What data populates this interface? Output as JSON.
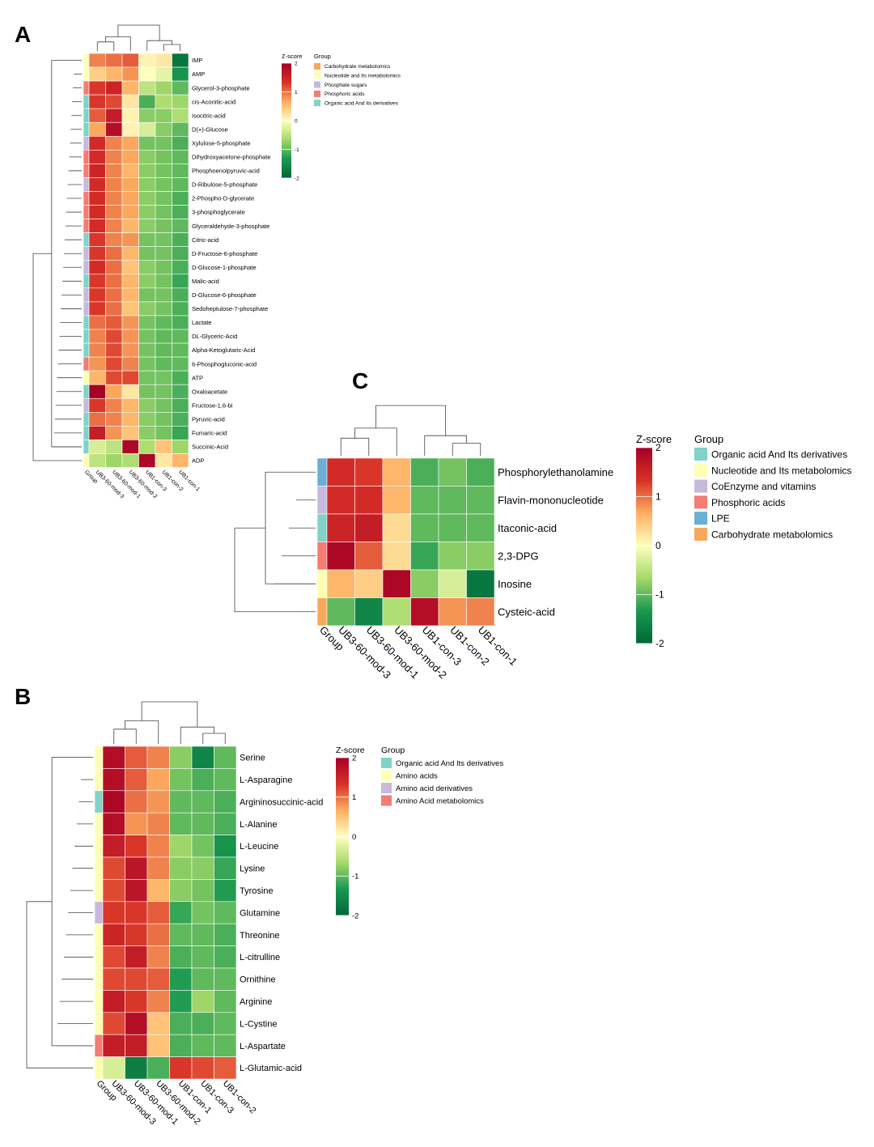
{
  "figure": {
    "panel_letters": [
      "A",
      "B",
      "C"
    ]
  },
  "palette": {
    "zscore_stops": [
      "#006837",
      "#1a9850",
      "#a6d96a",
      "#ffffbf",
      "#fdae61",
      "#d73027",
      "#a50026"
    ],
    "group_colors": {
      "Carbohydrate metabolomics": "#f9a85a",
      "Nucleotide and Its metabolomics": "#ffffb3",
      "Phosphate sugars": "#c6b9dc",
      "Phosphoric acids": "#f47c72",
      "Organic acid And Its derivatives": "#7fd3c8",
      "Amino acids": "#ffffb3",
      "Amino acid derivatives": "#c6b9dc",
      "Amino Acid metabolomics": "#f47c72",
      "CoEnzyme and vitamins": "#c6b9dc",
      "LPE": "#6baed6"
    }
  },
  "chart_data": [
    {
      "panel": "A",
      "type": "heatmap",
      "columns": [
        "Group",
        "UB3-60-mod-3",
        "UB3-60-mod-1",
        "UB3-60-mod-2",
        "UB1-con-3",
        "UB1-con-2",
        "UB1-con-1"
      ],
      "rows": [
        "IMP",
        "AMP",
        "Glycerol-3-phosphate",
        "cis-Aconitic-acid",
        "Isocitric-acid",
        "D(+)-Glucose",
        "Xylulose-5-phosphate",
        "Dihydroxyacetone-phosphate",
        "Phosphoenolpyruvic-acid",
        "D-Ribulose-5-phosphate",
        "2-Phospho-D-glycerate",
        "3-phosphoglycerate",
        "Glyceraldehyde-3-phosphate",
        "Citric-acid",
        "D-Fructose-6-phosphate",
        "D-Glucose-1-phosphate",
        "Malic-acid",
        "D-Glucose-6-phosphate",
        "Sedoheptulose-7-phosphate",
        "Lactate",
        "DL-Glyceric-Acid",
        "Alpha-Ketoglutaric-Acid",
        "6-Phosphogluconic-acid",
        "ATP",
        "Oxaloacetate",
        "Fructose-1,6-bi",
        "Pyruvic-acid",
        "Fumaric-acid",
        "Succinic-Acid",
        "ADP"
      ],
      "groups": [
        "Nucleotide and Its metabolomics",
        "Nucleotide and Its metabolomics",
        "Phosphoric acids",
        "Organic acid And Its derivatives",
        "Organic acid And Its derivatives",
        "Organic acid And Its derivatives",
        "Phosphate sugars",
        "Phosphoric acids",
        "Phosphoric acids",
        "Phosphate sugars",
        "Phosphoric acids",
        "Phosphoric acids",
        "Phosphoric acids",
        "Organic acid And Its derivatives",
        "Phosphate sugars",
        "Phosphate sugars",
        "Organic acid And Its derivatives",
        "Phosphate sugars",
        "Phosphate sugars",
        "Organic acid And Its derivatives",
        "Organic acid And Its derivatives",
        "Organic acid And Its derivatives",
        "Phosphoric acids",
        "Nucleotide and Its metabolomics",
        "Organic acid And Its derivatives",
        "Phosphate sugars",
        "Organic acid And Its derivatives",
        "Organic acid And Its derivatives",
        "Organic acid And Its derivatives",
        "Nucleotide and Its metabolomics"
      ],
      "values": [
        [
          0.9,
          1.0,
          1.1,
          0.1,
          0.2,
          -1.8
        ],
        [
          0.4,
          0.6,
          0.8,
          0.0,
          -0.2,
          -1.4
        ],
        [
          1.3,
          1.5,
          0.6,
          -0.5,
          -0.7,
          -1.0
        ],
        [
          1.3,
          1.2,
          0.2,
          -1.1,
          -0.6,
          -0.7
        ],
        [
          1.1,
          1.6,
          0.1,
          -0.8,
          -0.8,
          -0.6
        ],
        [
          0.7,
          1.8,
          0.1,
          -0.3,
          -0.8,
          -1.0
        ],
        [
          1.4,
          0.9,
          0.7,
          -0.9,
          -0.9,
          -1.1
        ],
        [
          1.4,
          0.9,
          0.7,
          -0.8,
          -0.9,
          -1.0
        ],
        [
          1.5,
          0.9,
          0.6,
          -0.8,
          -0.9,
          -1.0
        ],
        [
          1.4,
          0.9,
          0.7,
          -0.8,
          -0.9,
          -1.0
        ],
        [
          1.4,
          0.9,
          0.7,
          -0.8,
          -0.9,
          -1.1
        ],
        [
          1.4,
          0.9,
          0.7,
          -0.8,
          -0.9,
          -1.1
        ],
        [
          1.4,
          0.9,
          0.6,
          -0.8,
          -0.9,
          -1.0
        ],
        [
          1.3,
          0.9,
          0.8,
          -0.9,
          -0.9,
          -1.1
        ],
        [
          1.3,
          1.0,
          0.6,
          -0.9,
          -0.9,
          -1.1
        ],
        [
          1.4,
          1.0,
          0.5,
          -0.8,
          -0.9,
          -1.1
        ],
        [
          1.3,
          1.0,
          0.6,
          -0.8,
          -0.9,
          -1.2
        ],
        [
          1.3,
          1.0,
          0.6,
          -0.9,
          -0.9,
          -1.1
        ],
        [
          1.3,
          1.0,
          0.5,
          -0.8,
          -0.9,
          -1.1
        ],
        [
          1.0,
          1.1,
          0.8,
          -0.9,
          -1.0,
          -1.1
        ],
        [
          0.9,
          1.2,
          0.8,
          -0.9,
          -1.0,
          -1.0
        ],
        [
          0.9,
          1.2,
          0.8,
          -0.9,
          -1.0,
          -1.0
        ],
        [
          0.8,
          1.2,
          0.9,
          -0.9,
          -1.0,
          -1.0
        ],
        [
          0.6,
          1.2,
          1.2,
          -0.9,
          -0.9,
          -1.1
        ],
        [
          2.0,
          0.7,
          0.2,
          -0.9,
          -0.9,
          -1.1
        ],
        [
          1.3,
          0.9,
          0.6,
          -0.8,
          -0.9,
          -1.1
        ],
        [
          1.0,
          0.9,
          0.6,
          -0.8,
          -0.9,
          -1.1
        ],
        [
          1.6,
          0.8,
          0.5,
          -0.8,
          -0.9,
          -1.2
        ],
        [
          -0.3,
          -0.5,
          1.9,
          -0.6,
          0.5,
          -0.7
        ],
        [
          -0.5,
          -0.7,
          -0.6,
          1.9,
          0.2,
          0.6
        ]
      ],
      "legend": {
        "colorbar_title": "Z-score",
        "colorbar_ticks": [
          "2",
          "1",
          "0",
          "-1",
          "-2"
        ],
        "group_title": "Group",
        "group_items": [
          "Carbohydrate metabolomics",
          "Nucleotide and Its metabolomics",
          "Phosphate sugars",
          "Phosphoric acids",
          "Organic acid And Its derivatives"
        ]
      }
    },
    {
      "panel": "B",
      "type": "heatmap",
      "columns": [
        "Group",
        "UB3-60-mod-3",
        "UB3-60-mod-1",
        "UB3-60-mod-2",
        "UB1-con-1",
        "UB1-con-3",
        "UB1-con-2"
      ],
      "rows": [
        "Serine",
        "L-Asparagine",
        "Argininosuccinic-acid",
        "L-Alanine",
        "L-Leucine",
        "Lysine",
        "Tyrosine",
        "Glutamine",
        "Threonine",
        "L-citrulline",
        "Ornithine",
        "Arginine",
        "L-Cystine",
        "L-Aspartate",
        "L-Glutamic-acid"
      ],
      "groups": [
        "Amino acids",
        "Amino acids",
        "Organic acid And Its derivatives",
        "Amino acids",
        "Amino acids",
        "Amino acids",
        "Amino acids",
        "Amino acid derivatives",
        "Amino acids",
        "Amino acids",
        "Amino acids",
        "Amino acids",
        "Amino acids",
        "Amino Acid metabolomics",
        "Amino acids"
      ],
      "values": [
        [
          1.8,
          1.1,
          0.9,
          -0.8,
          -1.6,
          -1.0
        ],
        [
          1.8,
          1.1,
          0.7,
          -0.9,
          -1.1,
          -1.0
        ],
        [
          1.9,
          1.0,
          0.8,
          -1.0,
          -1.0,
          -1.1
        ],
        [
          1.8,
          0.8,
          0.9,
          -1.0,
          -1.0,
          -1.1
        ],
        [
          1.6,
          1.3,
          0.9,
          -0.7,
          -0.9,
          -1.4
        ],
        [
          1.2,
          1.7,
          0.9,
          -0.8,
          -0.8,
          -1.2
        ],
        [
          1.2,
          1.7,
          0.6,
          -0.8,
          -0.9,
          -1.3
        ],
        [
          1.3,
          1.3,
          1.1,
          -1.2,
          -0.9,
          -1.0
        ],
        [
          1.5,
          1.3,
          1.0,
          -1.0,
          -1.0,
          -1.1
        ],
        [
          1.2,
          1.6,
          0.9,
          -1.1,
          -1.0,
          -1.1
        ],
        [
          1.2,
          1.2,
          1.1,
          -1.3,
          -1.0,
          -1.0
        ],
        [
          1.6,
          1.3,
          0.9,
          -1.3,
          -0.7,
          -1.0
        ],
        [
          1.2,
          1.8,
          0.5,
          -1.1,
          -1.1,
          -1.0
        ],
        [
          1.6,
          1.6,
          0.5,
          -1.1,
          -1.0,
          -1.0
        ],
        [
          -0.3,
          -1.7,
          -1.1,
          1.3,
          1.2,
          1.1
        ]
      ],
      "legend": {
        "colorbar_title": "Z-score",
        "colorbar_ticks": [
          "2",
          "1",
          "0",
          "-1",
          "-2"
        ],
        "group_title": "Group",
        "group_items": [
          "Organic acid And Its derivatives",
          "Amino acids",
          "Amino acid derivatives",
          "Amino Acid metabolomics"
        ]
      }
    },
    {
      "panel": "C",
      "type": "heatmap",
      "columns": [
        "Group",
        "UB3-60-mod-3",
        "UB3-60-mod-1",
        "UB3-60-mod-2",
        "UB1-con-3",
        "UB1-con-2",
        "UB1-con-1"
      ],
      "rows": [
        "Phosphorylethanolamine",
        "Flavin-mononucleotide",
        "Itaconic-acid",
        "2,3-DPG",
        "Inosine",
        "Cysteic-acid"
      ],
      "groups": [
        "LPE",
        "CoEnzyme and vitamins",
        "Organic acid And Its derivatives",
        "Phosphoric acids",
        "Nucleotide and Its metabolomics",
        "Carbohydrate metabolomics"
      ],
      "values": [
        [
          1.4,
          1.3,
          0.6,
          -1.1,
          -0.9,
          -1.1
        ],
        [
          1.4,
          1.4,
          0.6,
          -1.0,
          -1.0,
          -1.0
        ],
        [
          1.5,
          1.6,
          0.3,
          -1.0,
          -1.0,
          -1.0
        ],
        [
          1.9,
          1.1,
          0.3,
          -1.2,
          -0.8,
          -0.8
        ],
        [
          0.6,
          0.4,
          1.9,
          -0.8,
          -0.3,
          -1.8
        ],
        [
          -1.0,
          -1.6,
          -0.6,
          1.8,
          0.8,
          0.9
        ]
      ],
      "legend": {
        "colorbar_title": "Z-score",
        "colorbar_ticks": [
          "2",
          "1",
          "0",
          "-1",
          "-2"
        ],
        "group_title": "Group",
        "group_items": [
          "Organic acid And Its derivatives",
          "Nucleotide and Its metabolomics",
          "CoEnzyme and vitamins",
          "Phosphoric acids",
          "LPE",
          "Carbohydrate metabolomics"
        ]
      }
    }
  ]
}
